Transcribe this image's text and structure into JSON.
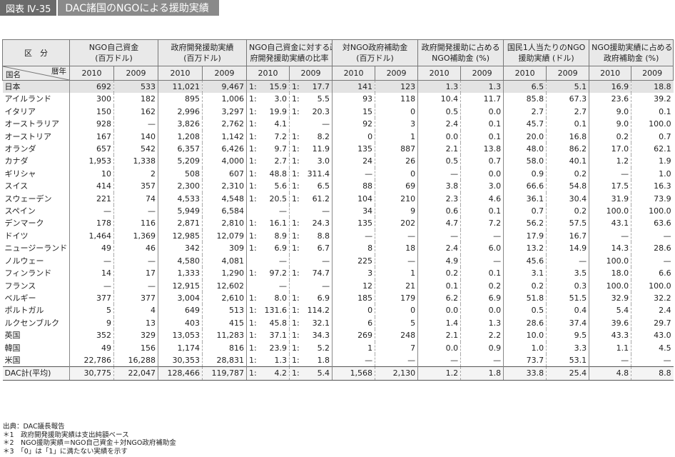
{
  "figure": {
    "label": "図表 Ⅳ-35",
    "title": "DAC諸国のNGOによる援助実績"
  },
  "headers": {
    "category": "区　分",
    "diag_top": "暦年",
    "diag_bottom": "国名",
    "groups": [
      {
        "line1": "NGO自己資金",
        "line2": "(百万ドル)"
      },
      {
        "line1": "政府開発援助実績",
        "line2": "(百万ドル)"
      },
      {
        "line1": "NGO自己資金に対する政",
        "line2": "府開発援助実績の比率"
      },
      {
        "line1": "対NGO政府補助金",
        "line2": "(百万ドル)"
      },
      {
        "line1": "政府開発援助に占める",
        "line2": "NGO補助金 (%)"
      },
      {
        "line1": "国民1人当たりのNGO",
        "line2": "援助実績 (ドル)"
      },
      {
        "line1": "NGO援助実績に占める",
        "line2": "政府補助金 (%)"
      }
    ],
    "years": [
      "2010",
      "2009"
    ]
  },
  "rows": [
    {
      "country": "日本",
      "v": [
        "692",
        "533",
        "11,021",
        "9,467",
        "1:",
        "15.9",
        "1:",
        "17.7",
        "141",
        "123",
        "1.3",
        "1.3",
        "6.5",
        "5.1",
        "16.9",
        "18.8"
      ]
    },
    {
      "country": "アイルランド",
      "v": [
        "300",
        "182",
        "895",
        "1,006",
        "1:",
        "3.0",
        "1:",
        "5.5",
        "93",
        "118",
        "10.4",
        "11.7",
        "85.8",
        "67.3",
        "23.6",
        "39.2"
      ]
    },
    {
      "country": "イタリア",
      "v": [
        "150",
        "162",
        "2,996",
        "3,297",
        "1:",
        "19.9",
        "1:",
        "20.3",
        "15",
        "0",
        "0.5",
        "0.0",
        "2.7",
        "2.7",
        "9.0",
        "0.1"
      ]
    },
    {
      "country": "オーストラリア",
      "v": [
        "928",
        "—",
        "3,826",
        "2,762",
        "1:",
        "4.1",
        "",
        "—",
        "92",
        "3",
        "2.4",
        "0.1",
        "45.7",
        "0.1",
        "9.0",
        "100.0"
      ]
    },
    {
      "country": "オーストリア",
      "v": [
        "167",
        "140",
        "1,208",
        "1,142",
        "1:",
        "7.2",
        "1:",
        "8.2",
        "0",
        "1",
        "0.0",
        "0.1",
        "20.0",
        "16.8",
        "0.2",
        "0.7"
      ]
    },
    {
      "country": "オランダ",
      "v": [
        "657",
        "542",
        "6,357",
        "6,426",
        "1:",
        "9.7",
        "1:",
        "11.9",
        "135",
        "887",
        "2.1",
        "13.8",
        "48.0",
        "86.2",
        "17.0",
        "62.1"
      ]
    },
    {
      "country": "カナダ",
      "v": [
        "1,953",
        "1,338",
        "5,209",
        "4,000",
        "1:",
        "2.7",
        "1:",
        "3.0",
        "24",
        "26",
        "0.5",
        "0.7",
        "58.0",
        "40.1",
        "1.2",
        "1.9"
      ]
    },
    {
      "country": "ギリシャ",
      "v": [
        "10",
        "2",
        "508",
        "607",
        "1:",
        "48.8",
        "1:",
        "311.4",
        "—",
        "0",
        "—",
        "0.0",
        "0.9",
        "0.2",
        "—",
        "1.0"
      ]
    },
    {
      "country": "スイス",
      "v": [
        "414",
        "357",
        "2,300",
        "2,310",
        "1:",
        "5.6",
        "1:",
        "6.5",
        "88",
        "69",
        "3.8",
        "3.0",
        "66.6",
        "54.8",
        "17.5",
        "16.3"
      ]
    },
    {
      "country": "スウェーデン",
      "v": [
        "221",
        "74",
        "4,533",
        "4,548",
        "1:",
        "20.5",
        "1:",
        "61.2",
        "104",
        "210",
        "2.3",
        "4.6",
        "36.1",
        "30.4",
        "31.9",
        "73.9"
      ]
    },
    {
      "country": "スペイン",
      "v": [
        "—",
        "—",
        "5,949",
        "6,584",
        "",
        "—",
        "",
        "—",
        "34",
        "9",
        "0.6",
        "0.1",
        "0.7",
        "0.2",
        "100.0",
        "100.0"
      ]
    },
    {
      "country": "デンマーク",
      "v": [
        "178",
        "116",
        "2,871",
        "2,810",
        "1:",
        "16.1",
        "1:",
        "24.3",
        "135",
        "202",
        "4.7",
        "7.2",
        "56.2",
        "57.5",
        "43.1",
        "63.6"
      ]
    },
    {
      "country": "ドイツ",
      "v": [
        "1,464",
        "1,369",
        "12,985",
        "12,079",
        "1:",
        "8.9",
        "1:",
        "8.8",
        "—",
        "—",
        "—",
        "—",
        "17.9",
        "16.7",
        "—",
        "—"
      ]
    },
    {
      "country": "ニュージーランド",
      "v": [
        "49",
        "46",
        "342",
        "309",
        "1:",
        "6.9",
        "1:",
        "6.7",
        "8",
        "18",
        "2.4",
        "6.0",
        "13.2",
        "14.9",
        "14.3",
        "28.6"
      ]
    },
    {
      "country": "ノルウェー",
      "v": [
        "—",
        "—",
        "4,580",
        "4,081",
        "",
        "—",
        "",
        "—",
        "225",
        "—",
        "4.9",
        "—",
        "45.6",
        "—",
        "100.0",
        "—"
      ]
    },
    {
      "country": "フィンランド",
      "v": [
        "14",
        "17",
        "1,333",
        "1,290",
        "1:",
        "97.2",
        "1:",
        "74.7",
        "3",
        "1",
        "0.2",
        "0.1",
        "3.1",
        "3.5",
        "18.0",
        "6.6"
      ]
    },
    {
      "country": "フランス",
      "v": [
        "—",
        "—",
        "12,915",
        "12,602",
        "",
        "—",
        "",
        "—",
        "12",
        "21",
        "0.1",
        "0.2",
        "0.2",
        "0.3",
        "100.0",
        "100.0"
      ]
    },
    {
      "country": "ベルギー",
      "v": [
        "377",
        "377",
        "3,004",
        "2,610",
        "1:",
        "8.0",
        "1:",
        "6.9",
        "185",
        "179",
        "6.2",
        "6.9",
        "51.8",
        "51.5",
        "32.9",
        "32.2"
      ]
    },
    {
      "country": "ポルトガル",
      "v": [
        "5",
        "4",
        "649",
        "513",
        "1:",
        "131.6",
        "1:",
        "114.2",
        "0",
        "0",
        "0.0",
        "0.0",
        "0.5",
        "0.4",
        "5.4",
        "2.4"
      ]
    },
    {
      "country": "ルクセンブルク",
      "v": [
        "9",
        "13",
        "403",
        "415",
        "1:",
        "45.8",
        "1:",
        "32.1",
        "6",
        "5",
        "1.4",
        "1.3",
        "28.6",
        "37.4",
        "39.6",
        "29.7"
      ]
    },
    {
      "country": "英国",
      "v": [
        "352",
        "329",
        "13,053",
        "11,283",
        "1:",
        "37.1",
        "1:",
        "34.3",
        "269",
        "248",
        "2.1",
        "2.2",
        "10.0",
        "9.5",
        "43.3",
        "43.0"
      ]
    },
    {
      "country": "韓国",
      "v": [
        "49",
        "156",
        "1,174",
        "816",
        "1:",
        "23.9",
        "1:",
        "5.2",
        "1",
        "7",
        "0.0",
        "0.9",
        "1.0",
        "3.3",
        "1.1",
        "4.5"
      ]
    },
    {
      "country": "米国",
      "v": [
        "22,786",
        "16,288",
        "30,353",
        "28,831",
        "1:",
        "1.3",
        "1:",
        "1.8",
        "—",
        "—",
        "—",
        "—",
        "73.7",
        "53.1",
        "—",
        "—"
      ]
    }
  ],
  "total": {
    "country": "DAC計(平均)",
    "v": [
      "30,775",
      "22,047",
      "128,466",
      "119,787",
      "1:",
      "4.2",
      "1:",
      "5.4",
      "1,568",
      "2,130",
      "1.2",
      "1.8",
      "33.8",
      "25.4",
      "4.8",
      "8.8"
    ]
  },
  "notes": [
    "出典：DAC議長報告",
    "＊1　政府開発援助実績は支出純額ベース",
    "＊2　NGO援助実績＝NGO自己資金＋対NGO政府補助金",
    "＊3　「0」は「1」に満たない実績を示す"
  ]
}
